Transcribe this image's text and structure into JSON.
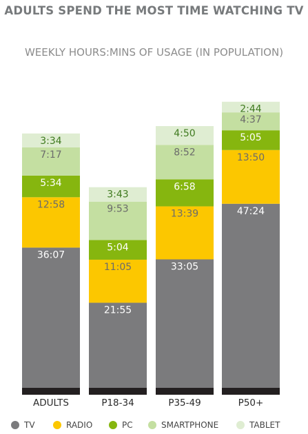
{
  "chart_data": {
    "type": "bar",
    "stacked": true,
    "title": "ADULTS SPEND THE MOST TIME WATCHING TV",
    "subtitle": "WEEKLY HOURS:MINS OF USAGE (IN POPULATION)",
    "categories": [
      "ADULTS",
      "P18-34",
      "P35-49",
      "P50+"
    ],
    "series": [
      {
        "name": "TV",
        "color": "#7b7b7d",
        "values": [
          "36:07",
          "21:55",
          "33:05",
          "47:24"
        ]
      },
      {
        "name": "RADIO",
        "color": "#fcc700",
        "values": [
          "12:58",
          "11:05",
          "13:39",
          "13:50"
        ]
      },
      {
        "name": "PC",
        "color": "#86b60f",
        "values": [
          "5:34",
          "5:04",
          "6:58",
          "5:05"
        ]
      },
      {
        "name": "SMARTPHONE",
        "color": "#c4dfa1",
        "values": [
          "7:17",
          "9:53",
          "8:52",
          "4:37"
        ]
      },
      {
        "name": "TABLET",
        "color": "#dfedd2",
        "values": [
          "3:34",
          "3:43",
          "4:50",
          "2:44"
        ]
      }
    ],
    "label_colors": [
      "#ffffff",
      "#6b6b6b",
      "#ffffff",
      "#6b6b6b",
      "#3f7a1f"
    ],
    "legend_position": "bottom",
    "grid": false
  }
}
